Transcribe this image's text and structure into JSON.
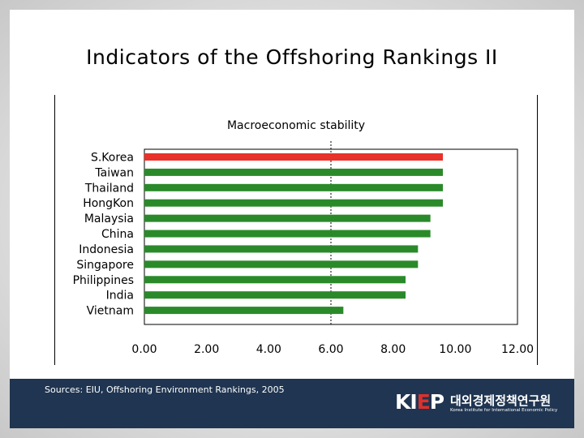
{
  "slide": {
    "title": "Indicators of the Offshoring Rankings II",
    "source": "Sources: EIU, Offshoring Environment Rankings, 2005",
    "logo": {
      "brand_k": "KI",
      "brand_e": "E",
      "brand_p": "P",
      "korean_name": "대외경제정책연구원",
      "english_name": "Korea Institute for International Economic Policy"
    }
  },
  "colors": {
    "highlight_bar": "#e8312a",
    "default_bar": "#2a8a2a",
    "footer": "#1f3551"
  },
  "chart_data": {
    "type": "bar",
    "orientation": "horizontal",
    "title": "Macroeconomic stability",
    "categories": [
      "S.Korea",
      "Taiwan",
      "Thailand",
      "HongKon",
      "Malaysia",
      "China",
      "Indonesia",
      "Singapore",
      "Philippines",
      "India",
      "Vietnam"
    ],
    "values": [
      9.6,
      9.6,
      9.6,
      9.6,
      9.2,
      9.2,
      8.8,
      8.8,
      8.4,
      8.4,
      6.4
    ],
    "highlight": "S.Korea",
    "xlim": [
      0,
      12
    ],
    "xticks": [
      "0.00",
      "2.00",
      "4.00",
      "6.00",
      "8.00",
      "10.00",
      "12.00"
    ],
    "reference_line": 6.0,
    "xlabel": "",
    "ylabel": ""
  }
}
